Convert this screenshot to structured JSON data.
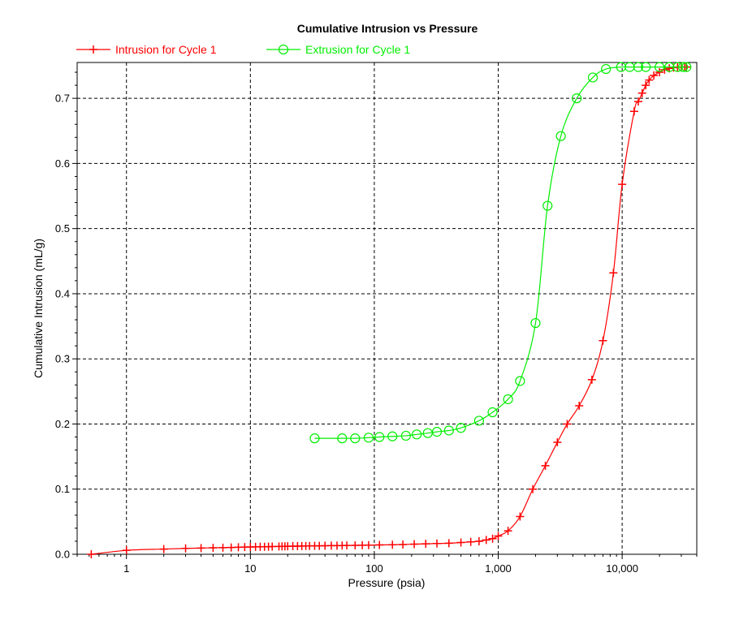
{
  "chart_data": {
    "type": "line",
    "title": "Cumulative Intrusion vs Pressure",
    "xlabel": "Pressure (psia)",
    "ylabel": "Cumulative Intrusion (mL/g)",
    "x_scale": "log",
    "xlim": [
      0.4,
      40000
    ],
    "ylim": [
      0,
      0.755
    ],
    "x_ticks": [
      1,
      10,
      100,
      1000,
      10000
    ],
    "x_tick_labels": [
      "1",
      "10",
      "100",
      "1,000",
      "10,000"
    ],
    "y_ticks": [
      0.0,
      0.1,
      0.2,
      0.3,
      0.4,
      0.5,
      0.6,
      0.7
    ],
    "y_tick_labels": [
      "0.0",
      "0.1",
      "0.2",
      "0.3",
      "0.4",
      "0.5",
      "0.6",
      "0.7"
    ],
    "grid": true,
    "legend_position": "top-left",
    "series": [
      {
        "name": "Intrusion for Cycle 1",
        "color": "#ff0000",
        "marker": "plus",
        "x": [
          0.52,
          1.0,
          2.0,
          3.0,
          4.0,
          5.0,
          6.0,
          7.0,
          8.0,
          9.0,
          10,
          11,
          12,
          13,
          14,
          15,
          17,
          18,
          19,
          20,
          22,
          24,
          26,
          28,
          30,
          33,
          36,
          40,
          45,
          50,
          55,
          60,
          70,
          80,
          90,
          110,
          140,
          170,
          210,
          260,
          320,
          400,
          500,
          600,
          700,
          800,
          900,
          1000,
          1200,
          1500,
          1900,
          2400,
          3000,
          3600,
          4500,
          5700,
          7000,
          8500,
          10000,
          12500,
          13500,
          14500,
          15500,
          16500,
          18000,
          20000,
          22000,
          24000,
          26000,
          28000,
          30000,
          32000,
          33000
        ],
        "y": [
          0.0,
          0.006,
          0.008,
          0.009,
          0.0095,
          0.01,
          0.0102,
          0.0105,
          0.0107,
          0.011,
          0.0112,
          0.0114,
          0.0115,
          0.0116,
          0.0117,
          0.0118,
          0.012,
          0.0121,
          0.0122,
          0.0123,
          0.0124,
          0.0125,
          0.0126,
          0.0127,
          0.0128,
          0.0129,
          0.013,
          0.0131,
          0.0132,
          0.0133,
          0.0134,
          0.0135,
          0.0137,
          0.0139,
          0.014,
          0.0143,
          0.0146,
          0.015,
          0.0155,
          0.016,
          0.0165,
          0.017,
          0.018,
          0.019,
          0.02,
          0.022,
          0.024,
          0.028,
          0.036,
          0.058,
          0.1,
          0.136,
          0.172,
          0.2,
          0.228,
          0.268,
          0.328,
          0.432,
          0.568,
          0.68,
          0.695,
          0.708,
          0.72,
          0.728,
          0.735,
          0.74,
          0.744,
          0.746,
          0.747,
          0.748,
          0.748,
          0.748,
          0.748
        ]
      },
      {
        "name": "Extrusion for Cycle 1",
        "color": "#00ee00",
        "marker": "circle",
        "x": [
          33,
          55,
          70,
          90,
          110,
          140,
          180,
          220,
          270,
          320,
          400,
          500,
          700,
          900,
          1200,
          1500,
          2000,
          2500,
          3200,
          4300,
          5800,
          7400,
          9800,
          11500,
          13500,
          15500,
          20000,
          24000,
          28000,
          31000,
          33000
        ],
        "y": [
          0.178,
          0.178,
          0.178,
          0.179,
          0.18,
          0.181,
          0.182,
          0.184,
          0.186,
          0.188,
          0.19,
          0.194,
          0.205,
          0.218,
          0.238,
          0.266,
          0.355,
          0.535,
          0.642,
          0.7,
          0.732,
          0.745,
          0.748,
          0.748,
          0.748,
          0.748,
          0.748,
          0.748,
          0.748,
          0.748,
          0.748
        ]
      }
    ]
  }
}
